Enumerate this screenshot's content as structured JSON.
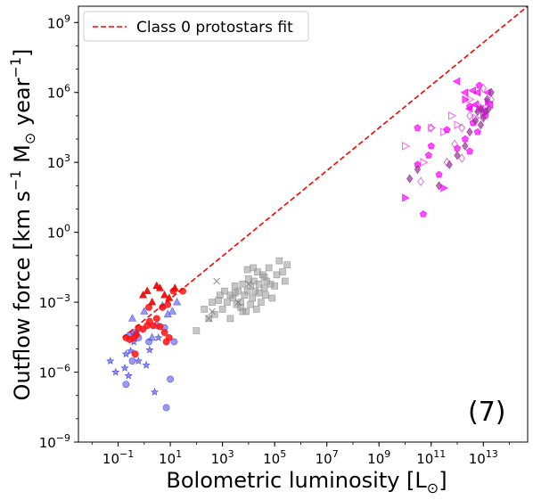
{
  "chart_data": {
    "type": "scatter",
    "xscale": "log",
    "yscale": "log",
    "xlim": [
      0.003,
      500000000000000.0
    ],
    "ylim": [
      1e-09,
      5000000000.0
    ],
    "xlabel": "Bolometric luminosity [L",
    "xlabel_sub": "⊙",
    "xlabel_end": "]",
    "ylabel_parts": [
      "Outflow force [km s",
      "−1",
      " M",
      "⊙",
      " year",
      "−1",
      "]"
    ],
    "panel_label": "(7)",
    "legend_entry": "Class 0 protostars fit",
    "legend_position": "top-left",
    "grid": false,
    "xticks": [
      {
        "value": 0.1,
        "base": "10",
        "exp": "−1"
      },
      {
        "value": 10,
        "base": "10",
        "exp": "1"
      },
      {
        "value": 1000,
        "base": "10",
        "exp": "3"
      },
      {
        "value": 100000,
        "base": "10",
        "exp": "5"
      },
      {
        "value": 10000000.0,
        "base": "10",
        "exp": "7"
      },
      {
        "value": 1000000000.0,
        "base": "10",
        "exp": "9"
      },
      {
        "value": 100000000000.0,
        "base": "10",
        "exp": "11"
      },
      {
        "value": 10000000000000.0,
        "base": "10",
        "exp": "13"
      }
    ],
    "yticks": [
      {
        "value": 1e-09,
        "base": "10",
        "exp": "−9"
      },
      {
        "value": 1e-06,
        "base": "10",
        "exp": "−6"
      },
      {
        "value": 0.001,
        "base": "10",
        "exp": "−3"
      },
      {
        "value": 1,
        "base": "10",
        "exp": "0"
      },
      {
        "value": 1000,
        "base": "10",
        "exp": "3"
      },
      {
        "value": 1000000.0,
        "base": "10",
        "exp": "6"
      },
      {
        "value": 1000000000.0,
        "base": "10",
        "exp": "9"
      }
    ],
    "fit_line": {
      "x": [
        0.15,
        500000000000000.0
      ],
      "y": [
        3e-05,
        5000000000.0
      ],
      "color": "#ff0000",
      "style": "dashed"
    },
    "series": [
      {
        "marker": "star",
        "color": "#4444ee",
        "fill": true,
        "alpha": 0.6,
        "points": [
          [
            0.05,
            3e-06
          ],
          [
            0.08,
            1e-06
          ],
          [
            0.18,
            1.5e-06
          ],
          [
            0.2,
            6e-06
          ],
          [
            0.25,
            7e-07
          ],
          [
            0.4,
            2e-05
          ],
          [
            0.5,
            5e-05
          ],
          [
            0.6,
            3e-06
          ],
          [
            1.2,
            2e-06
          ],
          [
            1.6,
            9e-06
          ],
          [
            3.5,
            3e-05
          ],
          [
            2.5,
            1.4e-07
          ],
          [
            0.3,
            8e-06
          ]
        ]
      },
      {
        "marker": "circle",
        "color": "#5555ee",
        "fill": true,
        "alpha": 0.6,
        "points": [
          [
            0.2,
            3e-07
          ],
          [
            0.28,
            4e-05
          ],
          [
            0.4,
            5e-05
          ],
          [
            0.6,
            3e-05
          ],
          [
            1.5,
            2e-05
          ],
          [
            3,
            0.0001
          ],
          [
            6,
            8e-05
          ],
          [
            10,
            5e-07
          ],
          [
            14,
            2e-05
          ],
          [
            7,
            3e-08
          ],
          [
            0.35,
            3e-06
          ]
        ]
      },
      {
        "marker": "triangle",
        "color": "#5555ee",
        "fill": true,
        "alpha": 0.6,
        "points": [
          [
            0.35,
            0.0002
          ],
          [
            0.5,
            5e-05
          ],
          [
            1,
            0.0004
          ],
          [
            2,
            3e-05
          ],
          [
            5,
            0.0007
          ],
          [
            8,
            0.0003
          ],
          [
            12,
            0.0004
          ],
          [
            18,
            0.001
          ]
        ]
      },
      {
        "marker": "circle",
        "color": "#ff1111",
        "fill": true,
        "alpha": 0.85,
        "points": [
          [
            0.2,
            3e-05
          ],
          [
            0.28,
            2.5e-05
          ],
          [
            0.4,
            3e-05
          ],
          [
            0.5,
            4e-05
          ],
          [
            0.6,
            8e-05
          ],
          [
            0.9,
            7e-05
          ],
          [
            1.3,
            0.0001
          ],
          [
            1.6,
            0.00015
          ],
          [
            2.2,
            0.0001
          ],
          [
            3,
            0.0002
          ],
          [
            4,
            9e-05
          ],
          [
            6,
            5e-05
          ],
          [
            9,
            3e-05
          ],
          [
            5,
            0.0006
          ],
          [
            7,
            2e-05
          ],
          [
            13,
            0.003
          ],
          [
            8,
            0.0008
          ],
          [
            30,
            0.003
          ],
          [
            0.45,
            6e-06
          ],
          [
            1.5,
            0.0006
          ]
        ]
      },
      {
        "marker": "triangle",
        "color": "#ee0000",
        "fill": true,
        "alpha": 0.9,
        "points": [
          [
            0.9,
            0.002
          ],
          [
            1.3,
            0.003
          ],
          [
            2,
            0.001
          ],
          [
            3,
            0.005
          ],
          [
            4,
            0.004
          ],
          [
            6,
            0.002
          ],
          [
            9,
            0.0015
          ],
          [
            15,
            0.004
          ]
        ]
      },
      {
        "marker": "square",
        "color": "#999999",
        "fill": true,
        "alpha": 0.55,
        "points": [
          [
            100,
            6e-05
          ],
          [
            200,
            0.0005
          ],
          [
            300,
            0.0002
          ],
          [
            400,
            0.001
          ],
          [
            500,
            0.0003
          ],
          [
            800,
            0.002
          ],
          [
            1000,
            0.0005
          ],
          [
            1200,
            0.003
          ],
          [
            1500,
            0.001
          ],
          [
            2000,
            0.0002
          ],
          [
            2500,
            0.0015
          ],
          [
            3000,
            0.005
          ],
          [
            3500,
            0.0008
          ],
          [
            4000,
            0.003
          ],
          [
            5000,
            0.001
          ],
          [
            6000,
            0.006
          ],
          [
            7000,
            0.002
          ],
          [
            8000,
            0.0004
          ],
          [
            9000,
            0.003
          ],
          [
            10000,
            0.01
          ],
          [
            12000,
            0.005
          ],
          [
            14000,
            0.0015
          ],
          [
            16000,
            0.008
          ],
          [
            18000,
            0.003
          ],
          [
            20000,
            0.0005
          ],
          [
            22000,
            0.02
          ],
          [
            25000,
            0.006
          ],
          [
            30000,
            0.001
          ],
          [
            35000,
            0.015
          ],
          [
            40000,
            0.004
          ],
          [
            45000,
            0.002
          ],
          [
            50000,
            0.008
          ],
          [
            60000,
            0.03
          ],
          [
            70000,
            0.006
          ],
          [
            80000,
            0.0015
          ],
          [
            100000,
            0.005
          ],
          [
            120000,
            0.015
          ],
          [
            150000,
            0.06
          ],
          [
            200000,
            0.02
          ],
          [
            250000,
            0.008
          ],
          [
            300000,
            0.04
          ],
          [
            5000,
            0.0006
          ],
          [
            2000,
            0.002
          ],
          [
            6000,
            0.0004
          ],
          [
            15000,
            0.03
          ],
          [
            9000,
            0.025
          ],
          [
            700,
            0.0012
          ],
          [
            40000,
            0.012
          ],
          [
            12000,
            0.0008
          ],
          [
            3000,
            0.0025
          ],
          [
            25000,
            0.0025
          ]
        ]
      },
      {
        "marker": "cross",
        "color": "#777777",
        "fill": false,
        "alpha": 0.8,
        "points": [
          [
            300,
            0.0002
          ],
          [
            400,
            0.0004
          ],
          [
            600,
            0.008
          ],
          [
            4000,
            0.001
          ],
          [
            10000,
            0.006
          ]
        ]
      },
      {
        "marker": "triangle-left",
        "color": "#ff00ff",
        "fill": true,
        "alpha": 0.7,
        "points": [
          [
            1000000000000.0,
            3000000.0
          ],
          [
            2000000000000.0,
            1000000.0
          ],
          [
            3000000000000.0,
            200000.0
          ],
          [
            4000000000000.0,
            1200000.0
          ],
          [
            5000000000000.0,
            300000.0
          ],
          [
            6000000000000.0,
            1000000.0
          ],
          [
            8000000000000.0,
            200000.0
          ],
          [
            12000000000000.0,
            160000.0
          ],
          [
            15000000000000.0,
            1000000.0
          ],
          [
            18000000000000.0,
            300000.0
          ]
        ]
      },
      {
        "marker": "triangle-right",
        "color": "#ff00ff",
        "fill": false,
        "alpha": 0.7,
        "points": [
          [
            10000000000.0,
            5000.0
          ],
          [
            50000000000.0,
            1000.0
          ],
          [
            100000000000.0,
            30000.0
          ],
          [
            300000000000.0,
            20000.0
          ],
          [
            600000000000.0,
            100000.0
          ],
          [
            1000000000000.0,
            40000.0
          ],
          [
            3000000000000.0,
            500000.0
          ],
          [
            5000000000000.0,
            80000.0
          ]
        ]
      },
      {
        "marker": "triangle-right",
        "color": "#ff00ff",
        "fill": true,
        "alpha": 0.7,
        "points": [
          [
            10000000000.0,
            30
          ],
          [
            300000000000.0,
            80
          ],
          [
            2000000000000.0,
            500000.0
          ],
          [
            7000000000000.0,
            200000.0
          ],
          [
            10000000000000.0,
            130000.0
          ],
          [
            15000000000000.0,
            400000.0
          ]
        ]
      },
      {
        "marker": "pentagon",
        "color": "#ff00ff",
        "fill": true,
        "alpha": 0.7,
        "points": [
          [
            50000000000.0,
            6
          ],
          [
            30000000000.0,
            800
          ],
          [
            80000000000.0,
            2000
          ],
          [
            200000000000.0,
            300
          ],
          [
            400000000000.0,
            25000.0
          ],
          [
            1000000000000.0,
            4000.0
          ],
          [
            2000000000000.0,
            10000.0
          ],
          [
            3000000000000.0,
            3000.0
          ],
          [
            4000000000000.0,
            50000.0
          ],
          [
            6000000000000.0,
            20000.0
          ],
          [
            7000000000000.0,
            2000000.0
          ],
          [
            3000000000000.0,
            250000.0
          ],
          [
            12000000000000.0,
            100000.0
          ],
          [
            30000000000.0,
            30000.0
          ],
          [
            100000000000.0,
            5000.0
          ]
        ]
      },
      {
        "marker": "diamond",
        "color": "#993399",
        "fill": true,
        "alpha": 0.7,
        "points": [
          [
            15000000000.0,
            200
          ],
          [
            30000000000.0,
            500
          ],
          [
            200000000000.0,
            100
          ],
          [
            500000000000.0,
            800
          ],
          [
            1000000000000.0,
            2000.0
          ],
          [
            2000000000000.0,
            5000.0
          ],
          [
            3000000000000.0,
            20000.0
          ],
          [
            5000000000000.0,
            60000.0
          ],
          [
            8000000000000.0,
            200000.0
          ],
          [
            10000000000000.0,
            80000.0
          ],
          [
            14000000000000.0,
            500000.0
          ],
          [
            16000000000000.0,
            200000.0
          ],
          [
            20000000000000.0,
            1000000.0
          ],
          [
            8000000000000.0,
            40000.0
          ],
          [
            6000000000000.0,
            150000.0
          ],
          [
            12000000000000.0,
            150000.0
          ]
        ]
      },
      {
        "marker": "diamond",
        "color": "#cc44cc",
        "fill": false,
        "alpha": 0.8,
        "points": [
          [
            40000000000.0,
            150
          ],
          [
            100000000000.0,
            30000.0
          ],
          [
            400000000000.0,
            1000.0
          ],
          [
            800000000000.0,
            6000.0
          ],
          [
            1500000000000.0,
            1500.0
          ],
          [
            3000000000000.0,
            100000.0
          ],
          [
            6000000000000.0,
            300000.0
          ],
          [
            10000000000000.0,
            1500000.0
          ],
          [
            20000000000000.0,
            500000.0
          ],
          [
            1500000000000.0,
            30000.0
          ]
        ]
      }
    ]
  }
}
